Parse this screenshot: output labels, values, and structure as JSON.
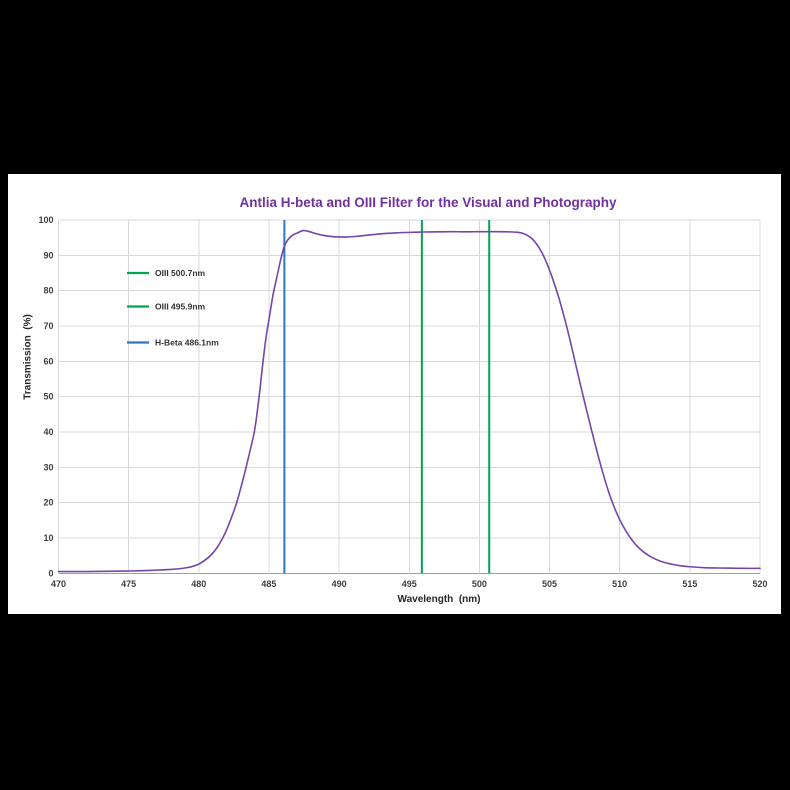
{
  "background_color": "#000000",
  "panel_color": "#ffffff",
  "chart_data": {
    "type": "line",
    "title": "Antlia H-beta and OIII Filter for the Visual and Photography",
    "title_color": "#7030a0",
    "xlabel": "Wavelength  (nm)",
    "ylabel": "Transmission  (%)",
    "xlim": [
      470,
      520
    ],
    "ylim": [
      0,
      100
    ],
    "x_ticks": [
      470,
      475,
      480,
      485,
      490,
      495,
      500,
      505,
      510,
      515,
      520
    ],
    "y_ticks": [
      0,
      10,
      20,
      30,
      40,
      50,
      60,
      70,
      80,
      90,
      100
    ],
    "grid": true,
    "grid_color": "#d9d9d9",
    "axis_line_color": "#9e9e9e",
    "tick_label_color": "#3f3f3f",
    "legend_position": "upper-left-inside",
    "legend": [
      {
        "label": "OIII 500.7nm",
        "color": "#00a551"
      },
      {
        "label": "OIII 495.9nm",
        "color": "#00a551"
      },
      {
        "label": "H-Beta 486.1nm",
        "color": "#2d78bf"
      }
    ],
    "marker_lines": [
      {
        "name": "H-Beta",
        "wavelength_nm": 486.1,
        "color": "#2d78bf"
      },
      {
        "name": "OIII",
        "wavelength_nm": 495.9,
        "color": "#00a551"
      },
      {
        "name": "OIII",
        "wavelength_nm": 500.7,
        "color": "#00a551"
      }
    ],
    "series": [
      {
        "name": "Transmission",
        "color": "#7645a8",
        "points": [
          [
            470,
            0.5
          ],
          [
            472,
            0.5
          ],
          [
            474,
            0.6
          ],
          [
            475,
            0.65
          ],
          [
            476,
            0.75
          ],
          [
            477,
            0.9
          ],
          [
            478,
            1.1
          ],
          [
            478.5,
            1.25
          ],
          [
            479,
            1.5
          ],
          [
            479.5,
            1.9
          ],
          [
            480,
            2.6
          ],
          [
            480.4,
            3.6
          ],
          [
            480.8,
            4.9
          ],
          [
            481.2,
            6.7
          ],
          [
            481.6,
            9.2
          ],
          [
            482,
            12.5
          ],
          [
            482.35,
            16
          ],
          [
            482.7,
            20
          ],
          [
            483.05,
            25
          ],
          [
            483.4,
            30.5
          ],
          [
            483.7,
            35.5
          ],
          [
            484,
            41
          ],
          [
            484.3,
            50
          ],
          [
            484.55,
            59
          ],
          [
            484.8,
            67
          ],
          [
            485.05,
            73
          ],
          [
            485.3,
            79
          ],
          [
            485.6,
            84.5
          ],
          [
            485.85,
            89
          ],
          [
            486.1,
            92.6
          ],
          [
            486.35,
            94.4
          ],
          [
            486.65,
            95.6
          ],
          [
            487,
            96.3
          ],
          [
            487.45,
            97.0
          ],
          [
            487.9,
            96.7
          ],
          [
            488.3,
            96.2
          ],
          [
            488.8,
            95.7
          ],
          [
            489.4,
            95.35
          ],
          [
            490,
            95.2
          ],
          [
            490.6,
            95.2
          ],
          [
            491.3,
            95.4
          ],
          [
            492,
            95.7
          ],
          [
            493,
            96.1
          ],
          [
            494,
            96.35
          ],
          [
            495,
            96.5
          ],
          [
            496,
            96.6
          ],
          [
            497,
            96.65
          ],
          [
            498,
            96.7
          ],
          [
            499,
            96.65
          ],
          [
            500,
            96.7
          ],
          [
            501,
            96.7
          ],
          [
            502,
            96.65
          ],
          [
            502.6,
            96.55
          ],
          [
            503.1,
            96.2
          ],
          [
            503.6,
            95.2
          ],
          [
            504,
            93.6
          ],
          [
            504.4,
            91.2
          ],
          [
            504.8,
            87.8
          ],
          [
            505.2,
            83.6
          ],
          [
            505.6,
            78.8
          ],
          [
            506,
            73.2
          ],
          [
            506.4,
            67
          ],
          [
            506.8,
            60.2
          ],
          [
            507.2,
            53.4
          ],
          [
            507.6,
            46.8
          ],
          [
            508,
            40.4
          ],
          [
            508.4,
            34.2
          ],
          [
            508.8,
            28.4
          ],
          [
            509.2,
            23.2
          ],
          [
            509.6,
            18.8
          ],
          [
            510,
            15.2
          ],
          [
            510.5,
            11.6
          ],
          [
            511,
            8.8
          ],
          [
            511.5,
            6.7
          ],
          [
            512,
            5.2
          ],
          [
            512.5,
            4.1
          ],
          [
            513,
            3.3
          ],
          [
            513.5,
            2.75
          ],
          [
            514,
            2.35
          ],
          [
            514.5,
            2.05
          ],
          [
            515,
            1.85
          ],
          [
            516,
            1.6
          ],
          [
            517,
            1.5
          ],
          [
            518,
            1.45
          ],
          [
            519,
            1.4
          ],
          [
            520,
            1.4
          ]
        ]
      }
    ]
  }
}
